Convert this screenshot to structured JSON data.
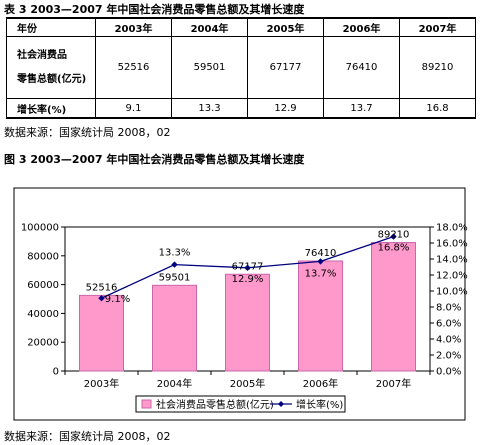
{
  "table_caption": "表 3 2003—2007 年中国社会消费品零售总额及其增长速度",
  "table": {
    "header": [
      "年份",
      "2003年",
      "2004年",
      "2005年",
      "2006年",
      "2007年"
    ],
    "row1_label_line1": "社会消费品",
    "row1_label_line2": "零售总额(亿元)",
    "row1_values": [
      "52516",
      "59501",
      "67177",
      "76410",
      "89210"
    ],
    "row2_label": "增长率(%)",
    "row2_values": [
      "9.1",
      "13.3",
      "12.9",
      "13.7",
      "16.8"
    ]
  },
  "table_source": "数据来源：国家统计局 2008，02",
  "figure_caption": "图 3 2003—2007 年中国社会消费品零售总额及其增长速度",
  "figure_source": "数据来源：国家统计局 2008，02",
  "chart_data": {
    "type": "bar",
    "categories": [
      "2003年",
      "2004年",
      "2005年",
      "2006年",
      "2007年"
    ],
    "series": [
      {
        "name": "社会消费品零售总额(亿元)",
        "type": "bar",
        "axis": "left",
        "values": [
          52516,
          59501,
          67177,
          76410,
          89210
        ],
        "labels": [
          "52516",
          "59501",
          "67177",
          "76410",
          "89210"
        ]
      },
      {
        "name": "增长率(%)",
        "type": "line",
        "axis": "right",
        "values": [
          9.1,
          13.3,
          12.9,
          13.7,
          16.8
        ],
        "labels": [
          "9.1%",
          "13.3%",
          "12.9%",
          "13.7%",
          "16.8%"
        ]
      }
    ],
    "ylim": [
      0,
      100000
    ],
    "y_ticks": [
      "0",
      "20000",
      "40000",
      "60000",
      "80000",
      "100000"
    ],
    "y2lim": [
      0,
      18
    ],
    "y2_ticks": [
      "0.0%",
      "2.0%",
      "4.0%",
      "6.0%",
      "8.0%",
      "10.0%",
      "12.0%",
      "14.0%",
      "16.0%",
      "18.0%"
    ],
    "legend_position": "bottom",
    "colors": {
      "bar_fill": "#ff99cc",
      "bar_stroke": "#cc66aa",
      "line": "#000080",
      "plot_bg": "#ffffff",
      "outer_border": "#000000"
    }
  }
}
